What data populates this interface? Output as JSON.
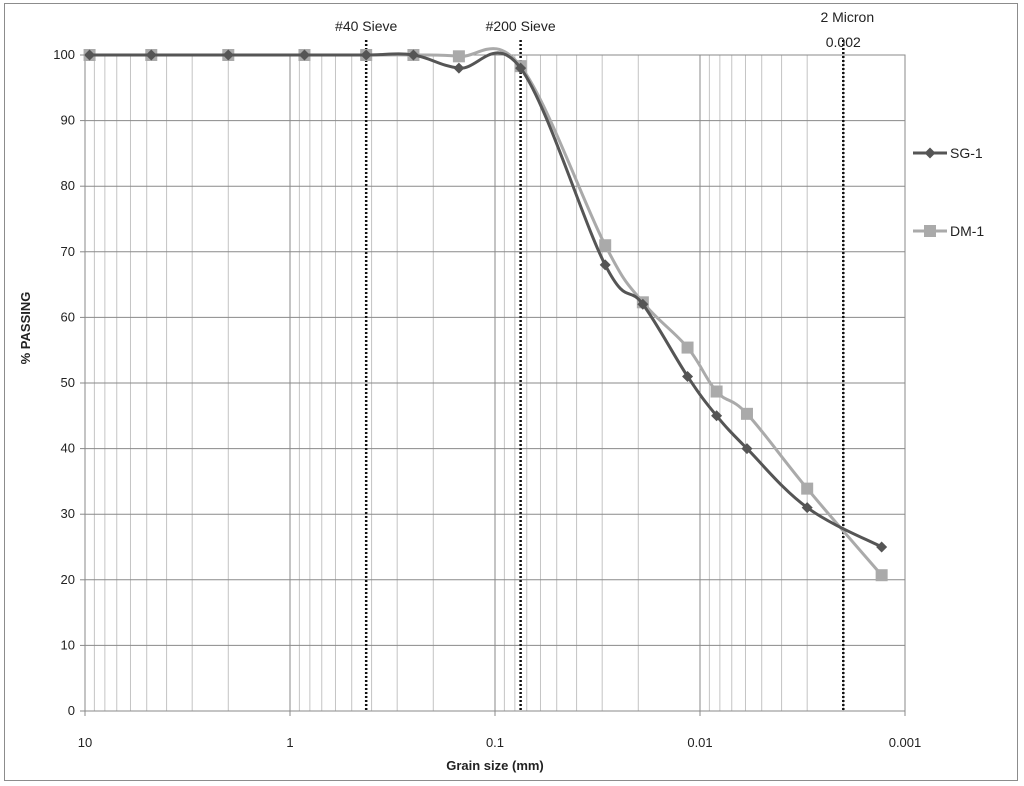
{
  "chart_data": {
    "type": "line",
    "title": "",
    "xlabel": "Grain size (mm)",
    "ylabel": "% PASSING",
    "x_scale": "log",
    "x_reversed": true,
    "xlim": [
      10,
      0.001
    ],
    "ylim": [
      0,
      100
    ],
    "x_ticks": [
      {
        "value": 10,
        "label": "10"
      },
      {
        "value": 1,
        "label": "1"
      },
      {
        "value": 0.1,
        "label": "0.1"
      },
      {
        "value": 0.01,
        "label": "0.01"
      },
      {
        "value": 0.001,
        "label": "0.001"
      }
    ],
    "y_ticks": [
      0,
      10,
      20,
      30,
      40,
      50,
      60,
      70,
      80,
      90,
      100
    ],
    "grid": true,
    "legend_position": "right",
    "series": [
      {
        "name": "SG-1",
        "color": "#555555",
        "marker": "diamond",
        "points": [
          {
            "x": 9.5,
            "y": 100
          },
          {
            "x": 4.75,
            "y": 100
          },
          {
            "x": 2.0,
            "y": 100
          },
          {
            "x": 0.85,
            "y": 100
          },
          {
            "x": 0.425,
            "y": 100
          },
          {
            "x": 0.25,
            "y": 100
          },
          {
            "x": 0.15,
            "y": 98
          },
          {
            "x": 0.075,
            "y": 98
          },
          {
            "x": 0.029,
            "y": 68
          },
          {
            "x": 0.019,
            "y": 62
          },
          {
            "x": 0.0115,
            "y": 51
          },
          {
            "x": 0.0083,
            "y": 45
          },
          {
            "x": 0.0059,
            "y": 40
          },
          {
            "x": 0.003,
            "y": 31
          },
          {
            "x": 0.0013,
            "y": 25
          }
        ]
      },
      {
        "name": "DM-1",
        "color": "#aaaaaa",
        "marker": "square",
        "points": [
          {
            "x": 9.5,
            "y": 100
          },
          {
            "x": 4.75,
            "y": 100
          },
          {
            "x": 2.0,
            "y": 100
          },
          {
            "x": 0.85,
            "y": 100
          },
          {
            "x": 0.425,
            "y": 100
          },
          {
            "x": 0.25,
            "y": 100
          },
          {
            "x": 0.15,
            "y": 99.8
          },
          {
            "x": 0.075,
            "y": 98.3
          },
          {
            "x": 0.029,
            "y": 71
          },
          {
            "x": 0.019,
            "y": 62.3
          },
          {
            "x": 0.0115,
            "y": 55.4
          },
          {
            "x": 0.0083,
            "y": 48.7
          },
          {
            "x": 0.0059,
            "y": 45.3
          },
          {
            "x": 0.003,
            "y": 33.9
          },
          {
            "x": 0.0013,
            "y": 20.7
          }
        ]
      }
    ],
    "reference_lines": [
      {
        "x": 0.425,
        "label": "#40 Sieve",
        "sublabel": ""
      },
      {
        "x": 0.075,
        "label": "#200 Sieve",
        "sublabel": ""
      },
      {
        "x": 0.002,
        "label": "2 Micron",
        "sublabel": "0.002"
      }
    ]
  }
}
